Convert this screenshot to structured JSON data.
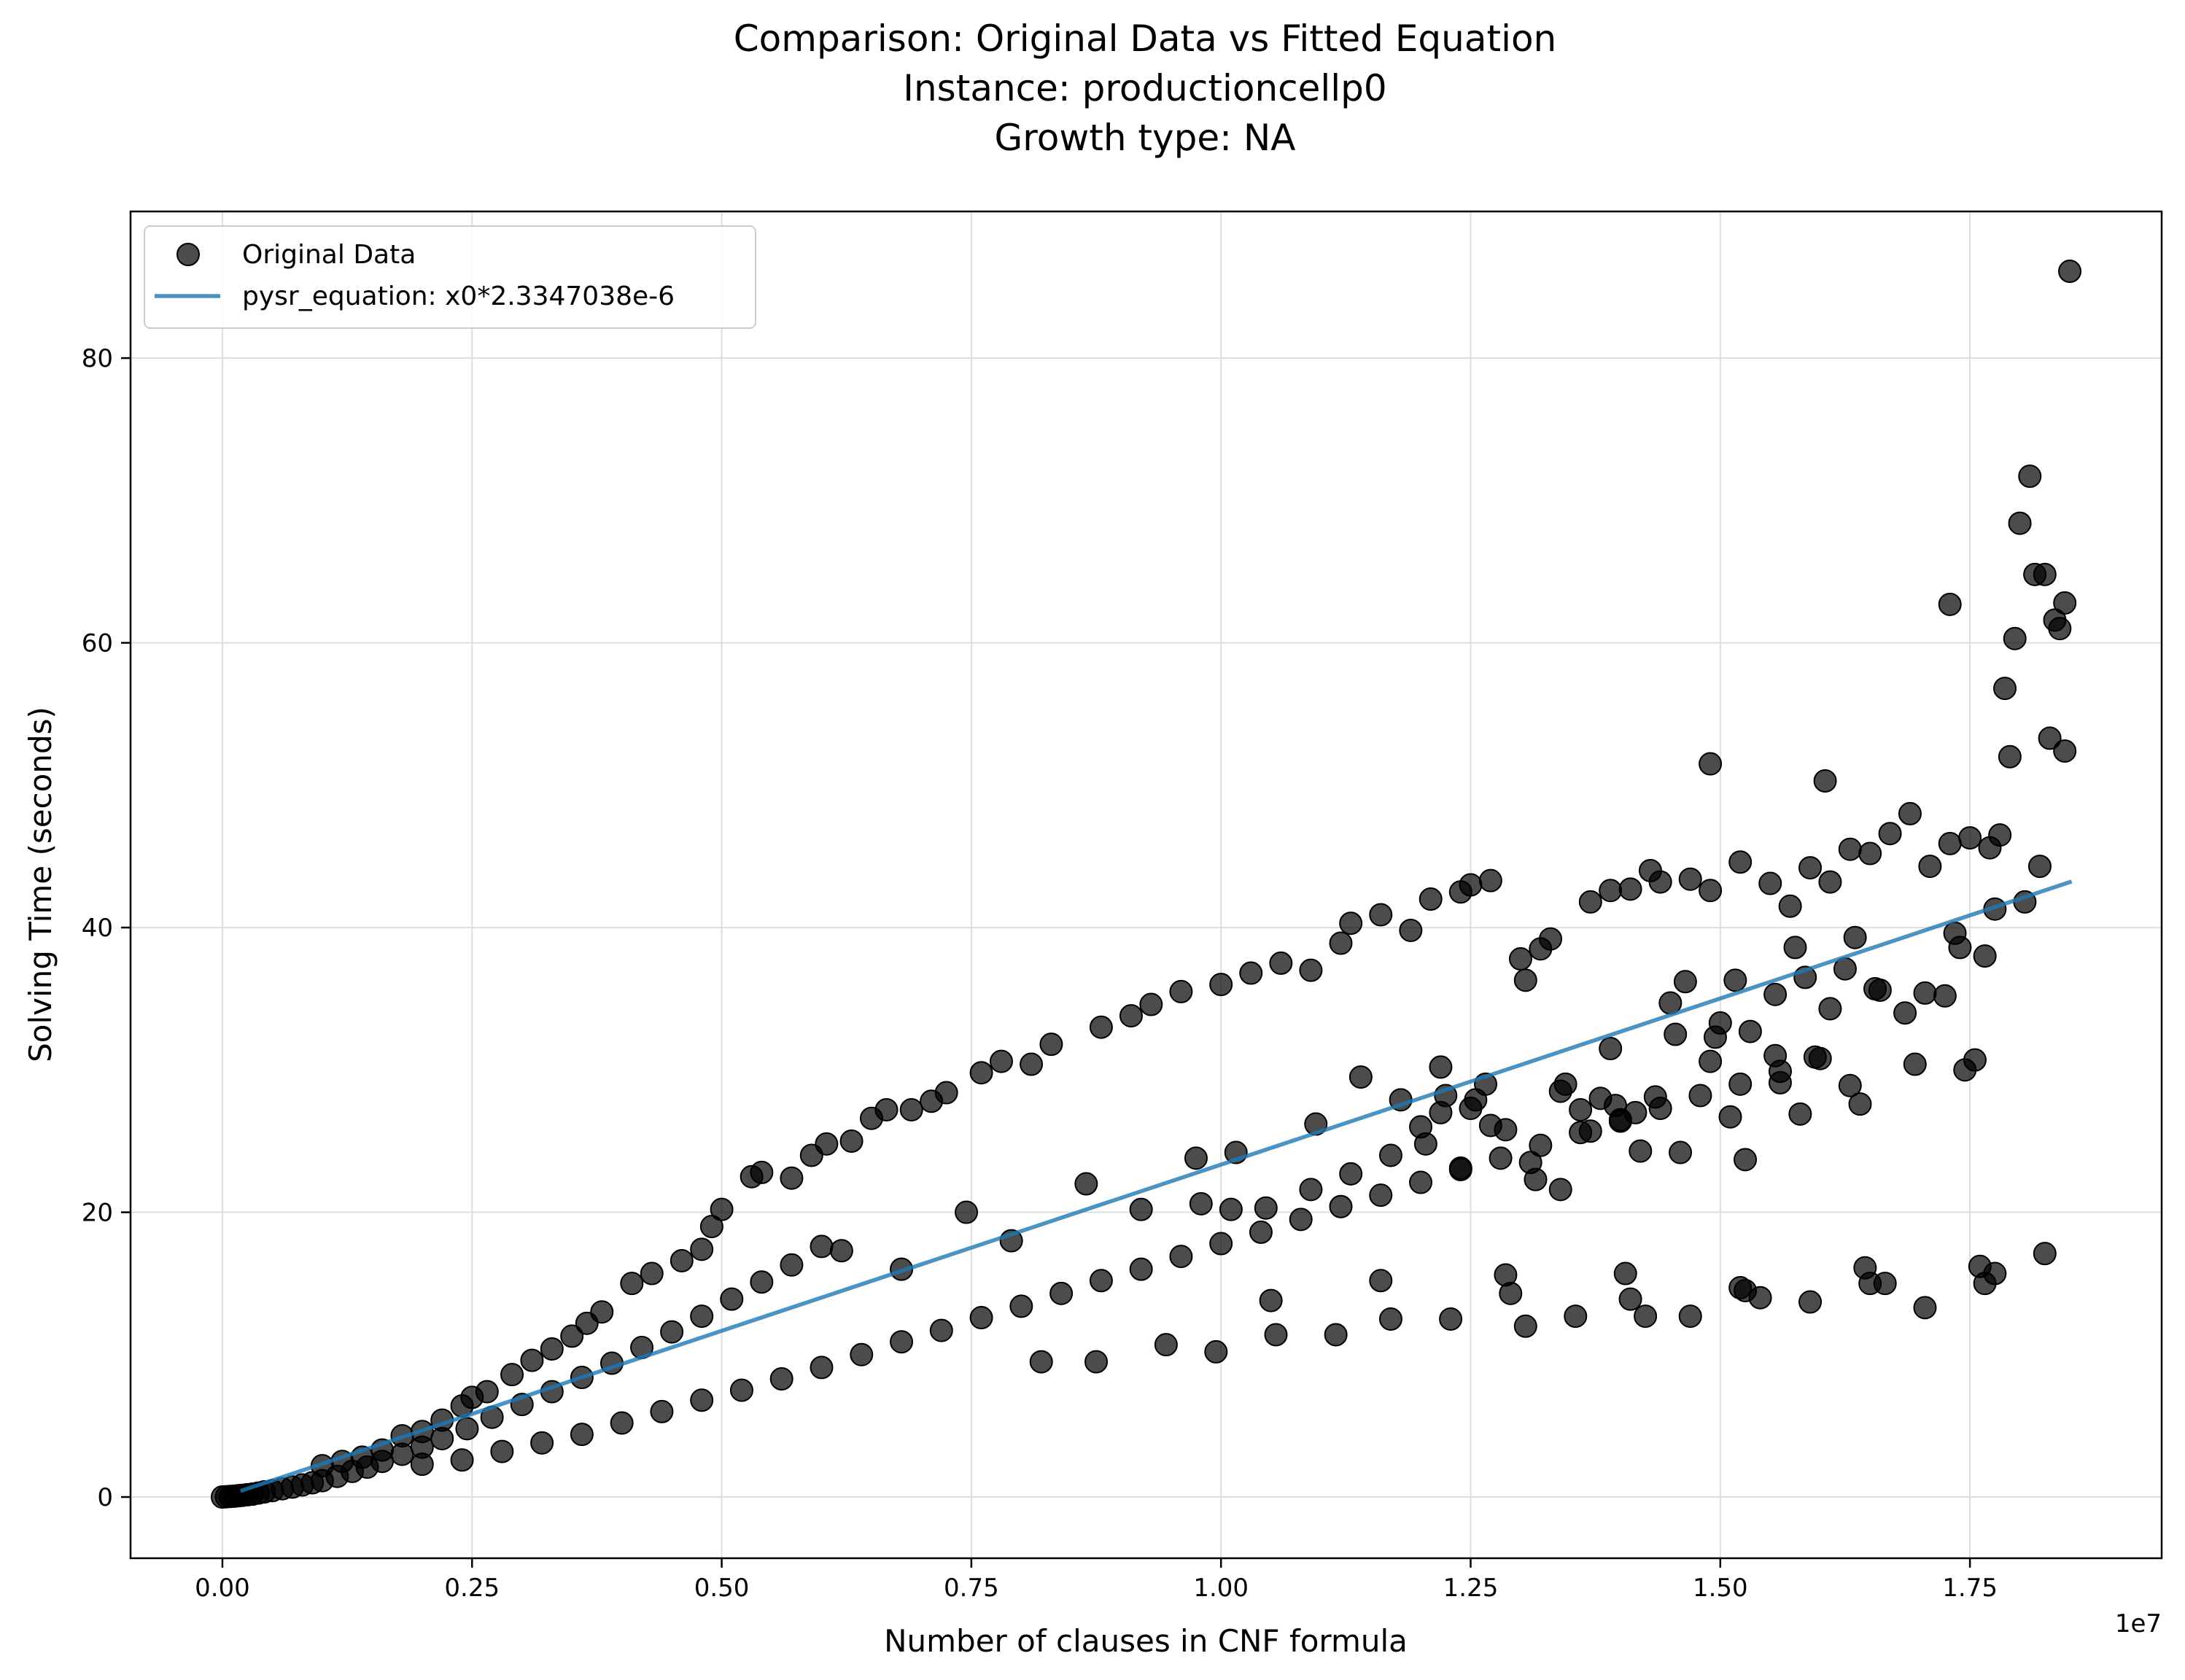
{
  "chart_data": {
    "type": "scatter",
    "title_lines": [
      "Comparison: Original Data vs Fitted Equation",
      "Instance: productioncellp0",
      "Growth type: NA"
    ],
    "xlabel": "Number of clauses in CNF formula",
    "ylabel": "Solving Time (seconds)",
    "x_offset_text": "1e7",
    "xlim": [
      -920000,
      19420000
    ],
    "ylim": [
      -4.3,
      90.3
    ],
    "xticks": [
      0,
      2500000,
      5000000,
      7500000,
      10000000,
      12500000,
      15000000,
      17500000
    ],
    "xtick_labels": [
      "0.00",
      "0.25",
      "0.50",
      "0.75",
      "1.00",
      "1.25",
      "1.50",
      "1.75"
    ],
    "yticks": [
      0,
      20,
      40,
      60,
      80
    ],
    "ytick_labels": [
      "0",
      "20",
      "40",
      "60",
      "80"
    ],
    "grid": true,
    "legend_position": "upper-left",
    "colors": {
      "points": "#000000",
      "fit_line": "#1f77b4"
    },
    "series": [
      {
        "name": "Original Data",
        "kind": "scatter",
        "points": [
          [
            0,
            0
          ],
          [
            40000,
            0.02
          ],
          [
            80000,
            0.04
          ],
          [
            120000,
            0.06
          ],
          [
            160000,
            0.09
          ],
          [
            200000,
            0.12
          ],
          [
            250000,
            0.16
          ],
          [
            300000,
            0.2
          ],
          [
            360000,
            0.28
          ],
          [
            420000,
            0.36
          ],
          [
            500000,
            0.45
          ],
          [
            600000,
            0.58
          ],
          [
            700000,
            0.7
          ],
          [
            800000,
            0.85
          ],
          [
            900000,
            1
          ],
          [
            1000000,
            1.15
          ],
          [
            1150000,
            1.45
          ],
          [
            1300000,
            1.8
          ],
          [
            1450000,
            2.1
          ],
          [
            1600000,
            2.5
          ],
          [
            1800000,
            3
          ],
          [
            2000000,
            3.5
          ],
          [
            2200000,
            4.1
          ],
          [
            2450000,
            4.8
          ],
          [
            2700000,
            5.6
          ],
          [
            3000000,
            6.5
          ],
          [
            3300000,
            7.4
          ],
          [
            3600000,
            8.4
          ],
          [
            3900000,
            9.4
          ],
          [
            4200000,
            10.5
          ],
          [
            4500000,
            11.6
          ],
          [
            4800000,
            12.7
          ],
          [
            5100000,
            13.9
          ],
          [
            5400000,
            15.1
          ],
          [
            5700000,
            16.3
          ],
          [
            6000000,
            17.6
          ],
          [
            1000000,
            2.2
          ],
          [
            1200000,
            2.5
          ],
          [
            1400000,
            2.8
          ],
          [
            1600000,
            3.3
          ],
          [
            1800000,
            4.3
          ],
          [
            2000000,
            4.6
          ],
          [
            2200000,
            5.4
          ],
          [
            2400000,
            6.4
          ],
          [
            2500000,
            7
          ],
          [
            2650000,
            7.4
          ],
          [
            2900000,
            8.6
          ],
          [
            3100000,
            9.6
          ],
          [
            3300000,
            10.4
          ],
          [
            3500000,
            11.3
          ],
          [
            3650000,
            12.2
          ],
          [
            3800000,
            13
          ],
          [
            4100000,
            15
          ],
          [
            4300000,
            15.7
          ],
          [
            4600000,
            16.6
          ],
          [
            4800000,
            17.4
          ],
          [
            4900000,
            19
          ],
          [
            5000000,
            20.2
          ],
          [
            5300000,
            22.5
          ],
          [
            5400000,
            22.8
          ],
          [
            5700000,
            22.4
          ],
          [
            5900000,
            24
          ],
          [
            6050000,
            24.8
          ],
          [
            6300000,
            25
          ],
          [
            6500000,
            26.6
          ],
          [
            6650000,
            27.2
          ],
          [
            6900000,
            27.2
          ],
          [
            7100000,
            27.8
          ],
          [
            7250000,
            28.4
          ],
          [
            7600000,
            29.8
          ],
          [
            7800000,
            30.6
          ],
          [
            8100000,
            30.4
          ],
          [
            8300000,
            31.8
          ],
          [
            8800000,
            33
          ],
          [
            9100000,
            33.8
          ],
          [
            9300000,
            34.6
          ],
          [
            9600000,
            35.5
          ],
          [
            10000000,
            36
          ],
          [
            10300000,
            36.8
          ],
          [
            10600000,
            37.5
          ],
          [
            10900000,
            37
          ],
          [
            11200000,
            38.9
          ],
          [
            11300000,
            40.3
          ],
          [
            11600000,
            40.9
          ],
          [
            11900000,
            39.8
          ],
          [
            12100000,
            42
          ],
          [
            12400000,
            42.5
          ],
          [
            12500000,
            43
          ],
          [
            12700000,
            43.3
          ],
          [
            13000000,
            37.8
          ],
          [
            13200000,
            38.5
          ],
          [
            13300000,
            39.2
          ],
          [
            13700000,
            41.8
          ],
          [
            13900000,
            42.6
          ],
          [
            14100000,
            42.7
          ],
          [
            14300000,
            44
          ],
          [
            14400000,
            43.2
          ],
          [
            14700000,
            43.4
          ],
          [
            14900000,
            42.6
          ],
          [
            15200000,
            44.6
          ],
          [
            15500000,
            43.1
          ],
          [
            15700000,
            41.5
          ],
          [
            15900000,
            44.2
          ],
          [
            16100000,
            43.2
          ],
          [
            16300000,
            45.5
          ],
          [
            16500000,
            45.2
          ],
          [
            16700000,
            46.6
          ],
          [
            16900000,
            48
          ],
          [
            17100000,
            44.3
          ],
          [
            17300000,
            45.9
          ],
          [
            17500000,
            46.3
          ],
          [
            17700000,
            45.6
          ],
          [
            17800000,
            46.5
          ],
          [
            2000000,
            2.3
          ],
          [
            2400000,
            2.6
          ],
          [
            2800000,
            3.2
          ],
          [
            3200000,
            3.8
          ],
          [
            3600000,
            4.4
          ],
          [
            4000000,
            5.2
          ],
          [
            4400000,
            6
          ],
          [
            4800000,
            6.8
          ],
          [
            5200000,
            7.5
          ],
          [
            5600000,
            8.3
          ],
          [
            6000000,
            9.1
          ],
          [
            6400000,
            10
          ],
          [
            6800000,
            10.9
          ],
          [
            7200000,
            11.7
          ],
          [
            7600000,
            12.6
          ],
          [
            8000000,
            13.4
          ],
          [
            8400000,
            14.3
          ],
          [
            8800000,
            15.2
          ],
          [
            9200000,
            16
          ],
          [
            9600000,
            16.9
          ],
          [
            10000000,
            17.8
          ],
          [
            10400000,
            18.6
          ],
          [
            10800000,
            19.5
          ],
          [
            11200000,
            20.4
          ],
          [
            11600000,
            21.2
          ],
          [
            12000000,
            22.1
          ],
          [
            12400000,
            23
          ],
          [
            12800000,
            23.8
          ],
          [
            13200000,
            24.7
          ],
          [
            13600000,
            25.6
          ],
          [
            14000000,
            26.4
          ],
          [
            14400000,
            27.3
          ],
          [
            14800000,
            28.2
          ],
          [
            15200000,
            29
          ],
          [
            15600000,
            29.9
          ],
          [
            16000000,
            30.8
          ],
          [
            6200000,
            17.3
          ],
          [
            6800000,
            16
          ],
          [
            7450000,
            20
          ],
          [
            7900000,
            18
          ],
          [
            8650000,
            22
          ],
          [
            9200000,
            20.2
          ],
          [
            9750000,
            23.8
          ],
          [
            10150000,
            24.2
          ],
          [
            10950000,
            26.2
          ],
          [
            11400000,
            29.5
          ],
          [
            12200000,
            30.2
          ],
          [
            12650000,
            29
          ],
          [
            13050000,
            36.3
          ],
          [
            13900000,
            31.5
          ],
          [
            14500000,
            34.7
          ],
          [
            14650000,
            36.2
          ],
          [
            14900000,
            51.5
          ],
          [
            15150000,
            36.3
          ],
          [
            15850000,
            36.5
          ],
          [
            16050000,
            50.3
          ],
          [
            16250000,
            37.1
          ],
          [
            16350000,
            39.3
          ],
          [
            17300000,
            62.7
          ],
          [
            17350000,
            39.6
          ],
          [
            17400000,
            38.6
          ],
          [
            17650000,
            38
          ],
          [
            17750000,
            41.3
          ],
          [
            17900000,
            52
          ],
          [
            17850000,
            56.8
          ],
          [
            17950000,
            60.3
          ],
          [
            18000000,
            68.4
          ],
          [
            18100000,
            71.7
          ],
          [
            18150000,
            64.8
          ],
          [
            18250000,
            64.8
          ],
          [
            18300000,
            53.3
          ],
          [
            18350000,
            61.6
          ],
          [
            18400000,
            61
          ],
          [
            18450000,
            62.8
          ],
          [
            18450000,
            52.4
          ],
          [
            18500000,
            86.1
          ],
          [
            18200000,
            44.3
          ],
          [
            18050000,
            41.8
          ],
          [
            8200000,
            9.5
          ],
          [
            8750000,
            9.5
          ],
          [
            9450000,
            10.7
          ],
          [
            9950000,
            10.2
          ],
          [
            10550000,
            11.4
          ],
          [
            11150000,
            11.4
          ],
          [
            11700000,
            12.5
          ],
          [
            12300000,
            12.5
          ],
          [
            12850000,
            15.6
          ],
          [
            13050000,
            12
          ],
          [
            13550000,
            12.7
          ],
          [
            14050000,
            15.7
          ],
          [
            14250000,
            12.7
          ],
          [
            14700000,
            12.7
          ],
          [
            15250000,
            14.5
          ],
          [
            15400000,
            14
          ],
          [
            15900000,
            13.7
          ],
          [
            16450000,
            16.1
          ],
          [
            16650000,
            15
          ],
          [
            17050000,
            13.3
          ],
          [
            17600000,
            16.2
          ],
          [
            17750000,
            15.7
          ],
          [
            18250000,
            17.1
          ],
          [
            10500000,
            13.8
          ],
          [
            11600000,
            15.2
          ],
          [
            12900000,
            14.3
          ],
          [
            14100000,
            13.9
          ],
          [
            15200000,
            14.7
          ],
          [
            16500000,
            15
          ],
          [
            17650000,
            15
          ],
          [
            12000000,
            26
          ],
          [
            12200000,
            27
          ],
          [
            12550000,
            27.9
          ],
          [
            12850000,
            25.8
          ],
          [
            13100000,
            23.5
          ],
          [
            13400000,
            28.5
          ],
          [
            13600000,
            27.2
          ],
          [
            13950000,
            27.5
          ],
          [
            14200000,
            24.3
          ],
          [
            14600000,
            24.2
          ],
          [
            15100000,
            26.7
          ],
          [
            15250000,
            23.7
          ],
          [
            15600000,
            29.1
          ],
          [
            15800000,
            26.9
          ],
          [
            16300000,
            28.9
          ],
          [
            16400000,
            27.6
          ],
          [
            16950000,
            30.4
          ],
          [
            17450000,
            30
          ],
          [
            17550000,
            30.7
          ],
          [
            11800000,
            27.9
          ],
          [
            12250000,
            28.2
          ],
          [
            12500000,
            27.3
          ],
          [
            13450000,
            29
          ],
          [
            13800000,
            28
          ],
          [
            14350000,
            28.1
          ],
          [
            14900000,
            30.6
          ],
          [
            15550000,
            31
          ],
          [
            15950000,
            30.9
          ],
          [
            16550000,
            35.7
          ],
          [
            16850000,
            34
          ],
          [
            17050000,
            35.4
          ],
          [
            17250000,
            35.2
          ],
          [
            9800000,
            20.6
          ],
          [
            10100000,
            20.2
          ],
          [
            10450000,
            20.3
          ],
          [
            10900000,
            21.6
          ],
          [
            11300000,
            22.7
          ],
          [
            11700000,
            24
          ],
          [
            12050000,
            24.8
          ],
          [
            12400000,
            23.1
          ],
          [
            12700000,
            26.1
          ],
          [
            13150000,
            22.3
          ],
          [
            13400000,
            21.6
          ],
          [
            13700000,
            25.7
          ],
          [
            14000000,
            26.5
          ],
          [
            14150000,
            27
          ],
          [
            14550000,
            32.5
          ],
          [
            14950000,
            32.3
          ],
          [
            15000000,
            33.3
          ],
          [
            15300000,
            32.7
          ],
          [
            15550000,
            35.3
          ],
          [
            15750000,
            38.6
          ],
          [
            16100000,
            34.3
          ],
          [
            16600000,
            35.6
          ]
        ]
      },
      {
        "name": "pysr_equation: x0*2.3347038e-6",
        "kind": "line",
        "x": [
          200000,
          18500000
        ],
        "y": [
          0.46694076,
          43.1920203
        ]
      }
    ]
  }
}
